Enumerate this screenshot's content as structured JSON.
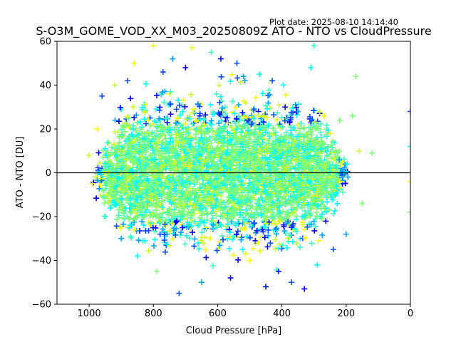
{
  "chart_data": {
    "type": "scatter",
    "title": "S-O3M_GOME_VOD_XX_M03_20250809Z ATO - NTO vs CloudPressure",
    "subtitle": "Plot date: 2025-08-10 14:14:40",
    "xlabel": "Cloud Pressure [hPa]",
    "ylabel": "ATO - NTO [DU]",
    "xlim": [
      1100,
      0
    ],
    "ylim": [
      -60,
      60
    ],
    "x_inverted": true,
    "x_ticks": [
      1000,
      800,
      600,
      400,
      200,
      0
    ],
    "x_tick_labels": [
      "1000",
      "800",
      "600",
      "400",
      "200",
      "0"
    ],
    "y_ticks": [
      -60,
      -40,
      -20,
      0,
      20,
      40,
      60
    ],
    "y_tick_labels": [
      "−60",
      "−40",
      "−20",
      "0",
      "20",
      "40",
      "60"
    ],
    "grid": false,
    "legend": "none",
    "marker": "+",
    "colormap": "jet",
    "reference_line_y": 0,
    "palette": {
      "dark_blue": "#0000ff",
      "blue": "#0a4cff",
      "light_blue": "#00a0ff",
      "cyan": "#00ffff",
      "aqua": "#3dffc0",
      "green": "#7dff7a",
      "yellow_green": "#c6ff30",
      "yellow": "#f0ff10"
    },
    "points_sample": [
      {
        "x": 1000,
        "y": 8,
        "c": "yellow_green"
      },
      {
        "x": 990,
        "y": -5,
        "c": "yellow"
      },
      {
        "x": 975,
        "y": 20,
        "c": "yellow"
      },
      {
        "x": 960,
        "y": 35,
        "c": "blue"
      },
      {
        "x": 950,
        "y": -20,
        "c": "cyan"
      },
      {
        "x": 920,
        "y": 40,
        "c": "yellow_green"
      },
      {
        "x": 900,
        "y": -30,
        "c": "light_blue"
      },
      {
        "x": 880,
        "y": 42,
        "c": "blue"
      },
      {
        "x": 860,
        "y": 50,
        "c": "yellow"
      },
      {
        "x": 850,
        "y": -38,
        "c": "cyan"
      },
      {
        "x": 830,
        "y": 12,
        "c": "green"
      },
      {
        "x": 800,
        "y": 58,
        "c": "yellow"
      },
      {
        "x": 790,
        "y": -45,
        "c": "green"
      },
      {
        "x": 770,
        "y": 46,
        "c": "blue"
      },
      {
        "x": 740,
        "y": 52,
        "c": "light_blue"
      },
      {
        "x": 720,
        "y": -55,
        "c": "blue"
      },
      {
        "x": 700,
        "y": 48,
        "c": "dark_blue"
      },
      {
        "x": 680,
        "y": 57,
        "c": "yellow"
      },
      {
        "x": 650,
        "y": -50,
        "c": "light_blue"
      },
      {
        "x": 620,
        "y": 55,
        "c": "aqua"
      },
      {
        "x": 590,
        "y": 52,
        "c": "dark_blue"
      },
      {
        "x": 560,
        "y": -48,
        "c": "dark_blue"
      },
      {
        "x": 540,
        "y": 50,
        "c": "blue"
      },
      {
        "x": 520,
        "y": 44,
        "c": "light_blue"
      },
      {
        "x": 500,
        "y": -40,
        "c": "yellow"
      },
      {
        "x": 470,
        "y": 45,
        "c": "cyan"
      },
      {
        "x": 450,
        "y": -52,
        "c": "dark_blue"
      },
      {
        "x": 430,
        "y": 42,
        "c": "blue"
      },
      {
        "x": 410,
        "y": -45,
        "c": "dark_blue"
      },
      {
        "x": 390,
        "y": 30,
        "c": "dark_blue"
      },
      {
        "x": 370,
        "y": -50,
        "c": "blue"
      },
      {
        "x": 350,
        "y": 28,
        "c": "light_blue"
      },
      {
        "x": 330,
        "y": -53,
        "c": "dark_blue"
      },
      {
        "x": 310,
        "y": 48,
        "c": "cyan"
      },
      {
        "x": 300,
        "y": 58,
        "c": "aqua"
      },
      {
        "x": 290,
        "y": -42,
        "c": "cyan"
      },
      {
        "x": 270,
        "y": 26,
        "c": "yellow"
      },
      {
        "x": 250,
        "y": 18,
        "c": "yellow"
      },
      {
        "x": 240,
        "y": -35,
        "c": "blue"
      },
      {
        "x": 220,
        "y": 24,
        "c": "green"
      },
      {
        "x": 200,
        "y": -28,
        "c": "light_blue"
      },
      {
        "x": 180,
        "y": 26,
        "c": "green"
      },
      {
        "x": 170,
        "y": 44,
        "c": "green"
      },
      {
        "x": 160,
        "y": 10,
        "c": "yellow_green"
      },
      {
        "x": 150,
        "y": -14,
        "c": "green"
      },
      {
        "x": 120,
        "y": 9,
        "c": "green"
      },
      {
        "x": 0,
        "y": 28,
        "c": "blue"
      },
      {
        "x": 0,
        "y": 12,
        "c": "cyan"
      },
      {
        "x": 0,
        "y": -4,
        "c": "yellow"
      },
      {
        "x": 0,
        "y": -18,
        "c": "green"
      }
    ],
    "density_cloud": {
      "x_center": 590,
      "x_halfwidth": 400,
      "y_center": 0,
      "y_halfwidth": 35,
      "n_points": 4200
    }
  }
}
